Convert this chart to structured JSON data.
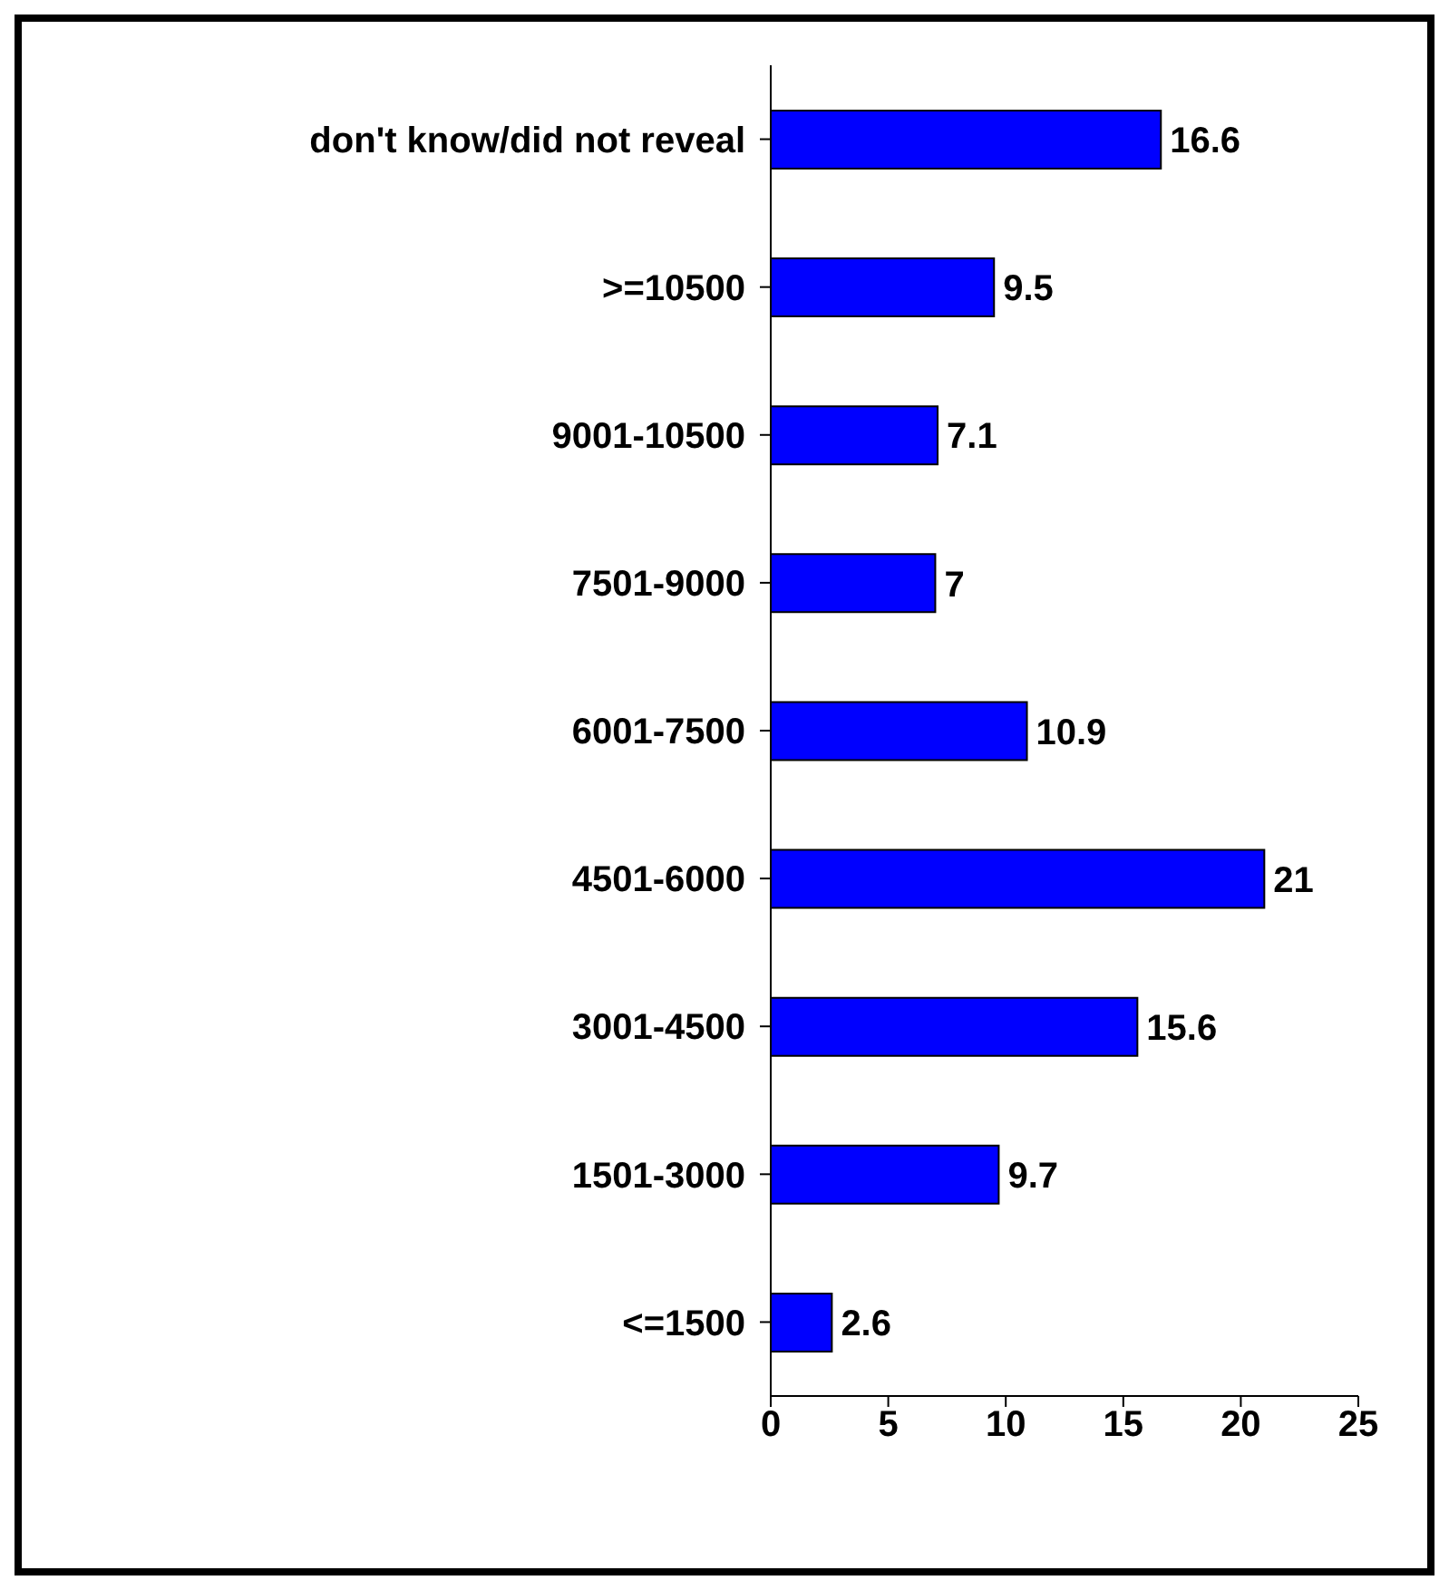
{
  "chart_data": {
    "type": "bar",
    "orientation": "horizontal",
    "categories": [
      "don't know/did not reveal",
      ">=10500",
      "9001-10500",
      "7501-9000",
      "6001-7500",
      "4501-6000",
      "3001-4500",
      "1501-3000",
      "<=1500"
    ],
    "values": [
      16.6,
      9.5,
      7.1,
      7,
      10.9,
      21,
      15.6,
      9.7,
      2.6
    ],
    "color": "#0000ff",
    "xlim": [
      0,
      25
    ],
    "xticks": [
      0,
      5,
      10,
      15,
      20,
      25
    ],
    "data_labels": true,
    "grid": false,
    "legend": false
  }
}
